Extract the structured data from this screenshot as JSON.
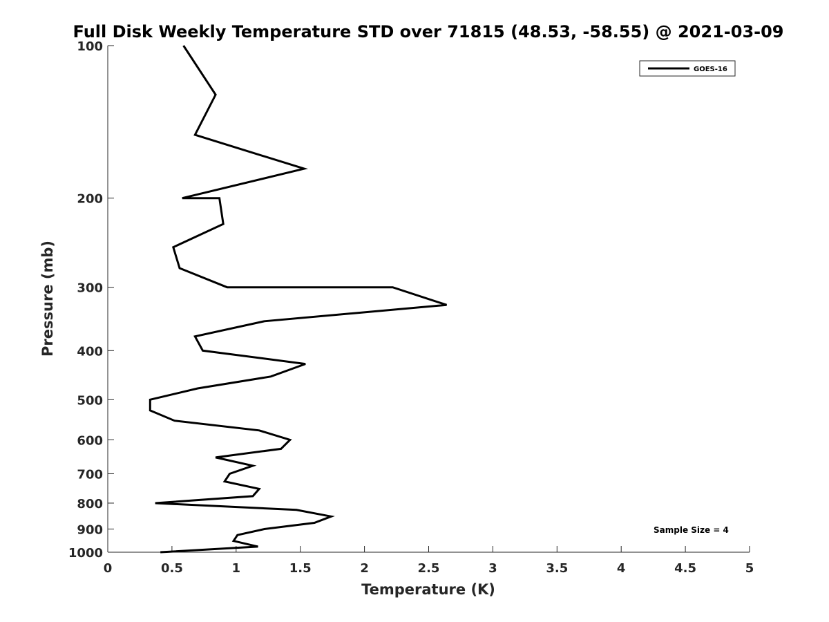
{
  "chart_data": {
    "type": "line",
    "title": "Full Disk Weekly Temperature STD over 71815 (48.53, -58.55) @ 2021-03-09",
    "xlabel": "Temperature (K)",
    "ylabel": "Pressure (mb)",
    "xlim": [
      0,
      5
    ],
    "ylim": [
      100,
      1000
    ],
    "yscale": "log",
    "y_reversed": true,
    "grid": false,
    "legend_position": "top-right",
    "x_ticks": [
      "0",
      "0.5",
      "1",
      "1.5",
      "2",
      "2.5",
      "3",
      "3.5",
      "4",
      "4.5",
      "5"
    ],
    "y_ticks": [
      "100",
      "200",
      "300",
      "400",
      "500",
      "600",
      "700",
      "800",
      "900",
      "1000"
    ],
    "series": [
      {
        "name": "GOES-16",
        "color": "#000000",
        "points": [
          [
            0.59,
            100
          ],
          [
            0.84,
            125
          ],
          [
            0.68,
            150
          ],
          [
            1.53,
            175
          ],
          [
            0.58,
            200
          ],
          [
            0.87,
            200
          ],
          [
            0.9,
            225
          ],
          [
            0.51,
            250
          ],
          [
            0.56,
            275
          ],
          [
            0.93,
            300
          ],
          [
            2.22,
            300
          ],
          [
            2.64,
            325
          ],
          [
            1.22,
            350
          ],
          [
            0.68,
            375
          ],
          [
            0.74,
            400
          ],
          [
            1.54,
            425
          ],
          [
            1.27,
            450
          ],
          [
            0.7,
            475
          ],
          [
            0.33,
            500
          ],
          [
            0.33,
            525
          ],
          [
            0.52,
            550
          ],
          [
            1.18,
            575
          ],
          [
            1.42,
            600
          ],
          [
            1.35,
            625
          ],
          [
            0.84,
            650
          ],
          [
            1.13,
            675
          ],
          [
            0.95,
            700
          ],
          [
            0.91,
            725
          ],
          [
            1.18,
            750
          ],
          [
            1.13,
            775
          ],
          [
            0.37,
            800
          ],
          [
            1.47,
            825
          ],
          [
            1.74,
            850
          ],
          [
            1.61,
            875
          ],
          [
            1.22,
            900
          ],
          [
            1.01,
            925
          ],
          [
            0.98,
            950
          ],
          [
            1.17,
            975
          ],
          [
            0.41,
            1000
          ],
          [
            0.44,
            1000
          ]
        ]
      }
    ],
    "annotations": [
      "Sample Size = 4"
    ]
  }
}
